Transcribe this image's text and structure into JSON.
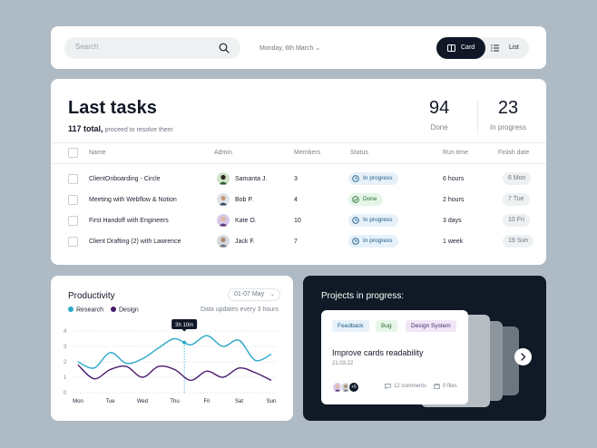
{
  "topbar": {
    "search_placeholder": "Search",
    "date": "Monday, 6th March",
    "view_card": "Card",
    "view_list": "List"
  },
  "tasks": {
    "title": "Last tasks",
    "total": "117 total,",
    "subtitle": "proceed to resolve them",
    "stats": [
      {
        "value": "94",
        "label": "Done"
      },
      {
        "value": "23",
        "label": "In progress"
      }
    ],
    "columns": [
      "Name",
      "Admin",
      "Members",
      "Status",
      "Run time",
      "Finish date"
    ],
    "rows": [
      {
        "name": "ClientOnboarding - Circle",
        "admin": "Samanta J.",
        "members": "3",
        "status": "In progress",
        "runtime": "6 hours",
        "finish": "6 Mon"
      },
      {
        "name": "Meeting with Webflow & Notion",
        "admin": "Bob P.",
        "members": "4",
        "status": "Done",
        "runtime": "2 hours",
        "finish": "7 Tue"
      },
      {
        "name": "First Handoff with Engineers",
        "admin": "Kate O.",
        "members": "10",
        "status": "In progress",
        "runtime": "3 days",
        "finish": "10 Fri"
      },
      {
        "name": "Client Drafting (2) with Lawrence",
        "admin": "Jack F.",
        "members": "7",
        "status": "In progress",
        "runtime": "1 week",
        "finish": "19 Sun"
      }
    ]
  },
  "productivity": {
    "title": "Productivity",
    "range": "01-07 May",
    "update_note": "Data updates every 3 hours",
    "tooltip": "3h 10m"
  },
  "chart_data": {
    "type": "line",
    "title": "Productivity",
    "categories": [
      "Mon",
      "Tue",
      "Wed",
      "Thu",
      "Fri",
      "Sat",
      "Sun"
    ],
    "yticks": [
      "0",
      "1",
      "2",
      "3",
      "4"
    ],
    "ylim": [
      0,
      4
    ],
    "x": [
      0,
      0.5,
      1,
      1.5,
      2,
      2.5,
      3,
      3.5,
      4,
      4.5,
      5,
      5.5,
      6
    ],
    "series": [
      {
        "name": "Research",
        "color": "#2aa9c9",
        "values": [
          2.0,
          1.6,
          2.6,
          1.9,
          2.2,
          2.9,
          3.5,
          3.1,
          3.7,
          3.0,
          3.4,
          2.1,
          2.5
        ]
      },
      {
        "name": "Design",
        "color": "#4a1a6e",
        "values": [
          1.8,
          0.9,
          1.5,
          1.7,
          1.0,
          1.7,
          1.5,
          0.8,
          1.4,
          1.0,
          1.6,
          1.3,
          0.8
        ]
      }
    ],
    "highlight": {
      "x": 3.3,
      "label": "3h 10m"
    },
    "grid": true
  },
  "projects": {
    "title": "Projects in progress:",
    "card": {
      "tags": [
        {
          "label": "Feedback",
          "bg": "#e6f1fa",
          "fg": "#1c5a86"
        },
        {
          "label": "Bug",
          "bg": "#e5f6e8",
          "fg": "#2a6b33"
        },
        {
          "label": "Design System",
          "bg": "#efe6f6",
          "fg": "#4a2a6e"
        }
      ],
      "title": "Improve cards readability",
      "date": "21.03.22",
      "extra_members": "+5",
      "comments": "12 comments",
      "files": "0 files"
    }
  }
}
